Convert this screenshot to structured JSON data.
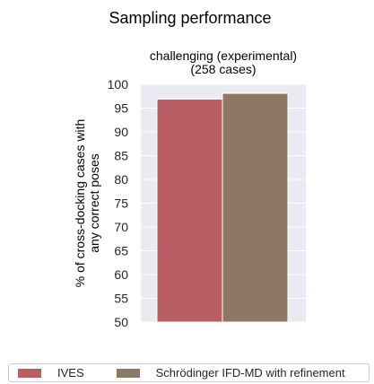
{
  "figure_title": "Sampling performance",
  "chart_data": {
    "type": "bar",
    "title": "challenging (experimental)\n(258 cases)",
    "ylabel": "% of cross-docking cases with\nany correct poses",
    "xlabel": "",
    "ylim": [
      50,
      100
    ],
    "yticks": [
      50,
      55,
      60,
      65,
      70,
      75,
      80,
      85,
      90,
      95,
      100
    ],
    "grid": true,
    "legend_position": "bottom",
    "series": [
      {
        "name": "IVES",
        "value": 96.9,
        "color": "#b95e62"
      },
      {
        "name": "Schrödinger IFD-MD with refinement",
        "value": 98.1,
        "color": "#8c7863"
      }
    ]
  },
  "colors": {
    "plot_background": "#eaeaf2",
    "grid": "#ffffff",
    "text": "#262626"
  }
}
